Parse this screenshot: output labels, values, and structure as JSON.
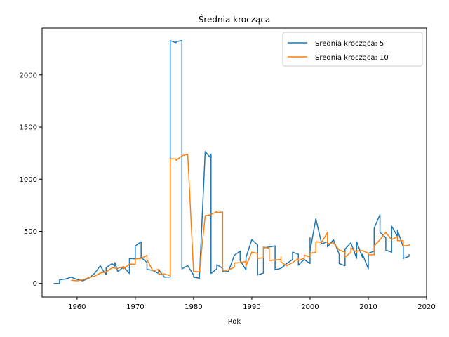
{
  "chart_data": {
    "type": "line",
    "title": "Średnia krocząca",
    "xlabel": "Rok",
    "ylabel": "",
    "xlim": [
      1954,
      2020
    ],
    "ylim": [
      -130,
      2450
    ],
    "x_ticks": [
      1960,
      1970,
      1980,
      1990,
      2000,
      2010,
      2020
    ],
    "y_ticks": [
      0,
      500,
      1000,
      1500,
      2000
    ],
    "grid": false,
    "legend_position": "top-right",
    "series": [
      {
        "name": "Srednia krocząca: 5",
        "color": "#1f77b4",
        "points": [
          [
            1956,
            0
          ],
          [
            1957,
            0
          ],
          [
            1957,
            35
          ],
          [
            1958,
            42
          ],
          [
            1959,
            60
          ],
          [
            1960,
            38
          ],
          [
            1961,
            25
          ],
          [
            1962,
            50
          ],
          [
            1963,
            95
          ],
          [
            1964,
            170
          ],
          [
            1964.5,
            120
          ],
          [
            1965,
            85
          ],
          [
            1965,
            150
          ],
          [
            1966,
            190
          ],
          [
            1966.5,
            165
          ],
          [
            1966.5,
            200
          ],
          [
            1967,
            115
          ],
          [
            1967.5,
            135
          ],
          [
            1968,
            160
          ],
          [
            1969,
            95
          ],
          [
            1969,
            240
          ],
          [
            1970,
            235
          ],
          [
            1970,
            360
          ],
          [
            1971,
            400
          ],
          [
            1971,
            250
          ],
          [
            1972,
            200
          ],
          [
            1972,
            135
          ],
          [
            1973,
            125
          ],
          [
            1974,
            95
          ],
          [
            1974,
            130
          ],
          [
            1975,
            60
          ],
          [
            1976,
            60
          ],
          [
            1976,
            2330
          ],
          [
            1977,
            2310
          ],
          [
            1977,
            2320
          ],
          [
            1978,
            2330
          ],
          [
            1978,
            140
          ],
          [
            1979,
            170
          ],
          [
            1980,
            80
          ],
          [
            1980,
            60
          ],
          [
            1981,
            50
          ],
          [
            1982,
            1265
          ],
          [
            1983,
            1200
          ],
          [
            1983,
            1240
          ],
          [
            1983,
            95
          ],
          [
            1984,
            140
          ],
          [
            1984,
            180
          ],
          [
            1985,
            145
          ],
          [
            1985,
            110
          ],
          [
            1986,
            115
          ],
          [
            1987,
            270
          ],
          [
            1988,
            310
          ],
          [
            1988,
            220
          ],
          [
            1989,
            130
          ],
          [
            1989,
            250
          ],
          [
            1990,
            420
          ],
          [
            1991,
            370
          ],
          [
            1991,
            80
          ],
          [
            1992,
            100
          ],
          [
            1992,
            340
          ],
          [
            1993,
            350
          ],
          [
            1994,
            360
          ],
          [
            1994,
            130
          ],
          [
            1995,
            145
          ],
          [
            1996,
            190
          ],
          [
            1997,
            230
          ],
          [
            1997,
            300
          ],
          [
            1998,
            280
          ],
          [
            1998,
            175
          ],
          [
            1999,
            230
          ],
          [
            2000,
            190
          ],
          [
            2000,
            440
          ],
          [
            2000,
            310
          ],
          [
            2001,
            620
          ],
          [
            2002,
            380
          ],
          [
            2003,
            400
          ],
          [
            2003,
            350
          ],
          [
            2004,
            420
          ],
          [
            2005,
            280
          ],
          [
            2005,
            190
          ],
          [
            2006,
            170
          ],
          [
            2006,
            330
          ],
          [
            2007,
            390
          ],
          [
            2008,
            240
          ],
          [
            2008,
            400
          ],
          [
            2009,
            250
          ],
          [
            2009,
            280
          ],
          [
            2010,
            140
          ],
          [
            2010,
            290
          ],
          [
            2011,
            310
          ],
          [
            2011,
            530
          ],
          [
            2012,
            660
          ],
          [
            2012,
            490
          ],
          [
            2013,
            440
          ],
          [
            2013,
            320
          ],
          [
            2014,
            300
          ],
          [
            2014,
            550
          ],
          [
            2015,
            450
          ],
          [
            2015,
            510
          ],
          [
            2016,
            350
          ],
          [
            2016,
            240
          ],
          [
            2017,
            260
          ],
          [
            2017,
            280
          ]
        ]
      },
      {
        "name": "Srednia krocząca: 10",
        "color": "#ff7f0e",
        "points": [
          [
            1959,
            30
          ],
          [
            1960,
            25
          ],
          [
            1961,
            35
          ],
          [
            1962,
            55
          ],
          [
            1963,
            70
          ],
          [
            1964,
            100
          ],
          [
            1965,
            110
          ],
          [
            1966,
            150
          ],
          [
            1967,
            145
          ],
          [
            1968,
            160
          ],
          [
            1968,
            140
          ],
          [
            1969,
            185
          ],
          [
            1970,
            185
          ],
          [
            1970,
            235
          ],
          [
            1971,
            240
          ],
          [
            1972,
            270
          ],
          [
            1972,
            230
          ],
          [
            1973,
            120
          ],
          [
            1974,
            135
          ],
          [
            1974,
            90
          ],
          [
            1975,
            90
          ],
          [
            1976,
            75
          ],
          [
            1976,
            1195
          ],
          [
            1977,
            1195
          ],
          [
            1977,
            1180
          ],
          [
            1978,
            1225
          ],
          [
            1979,
            1240
          ],
          [
            1980,
            115
          ],
          [
            1981,
            110
          ],
          [
            1982,
            650
          ],
          [
            1983,
            660
          ],
          [
            1984,
            690
          ],
          [
            1984,
            680
          ],
          [
            1985,
            685
          ],
          [
            1985,
            120
          ],
          [
            1986,
            130
          ],
          [
            1987,
            155
          ],
          [
            1987,
            195
          ],
          [
            1988,
            200
          ],
          [
            1989,
            210
          ],
          [
            1989,
            165
          ],
          [
            1990,
            300
          ],
          [
            1991,
            290
          ],
          [
            1991,
            240
          ],
          [
            1992,
            245
          ],
          [
            1992,
            350
          ],
          [
            1993,
            335
          ],
          [
            1993,
            220
          ],
          [
            1994,
            225
          ],
          [
            1995,
            230
          ],
          [
            1995,
            255
          ],
          [
            1995,
            205
          ],
          [
            1996,
            170
          ],
          [
            1997,
            200
          ],
          [
            1998,
            240
          ],
          [
            1998,
            220
          ],
          [
            1999,
            240
          ],
          [
            1999,
            270
          ],
          [
            2000,
            255
          ],
          [
            2000,
            290
          ],
          [
            2001,
            300
          ],
          [
            2001,
            400
          ],
          [
            2002,
            395
          ],
          [
            2003,
            490
          ],
          [
            2003,
            380
          ],
          [
            2004,
            390
          ],
          [
            2005,
            320
          ],
          [
            2006,
            300
          ],
          [
            2006,
            250
          ],
          [
            2007,
            300
          ],
          [
            2007,
            340
          ],
          [
            2008,
            300
          ],
          [
            2008,
            310
          ],
          [
            2009,
            315
          ],
          [
            2010,
            290
          ],
          [
            2010,
            275
          ],
          [
            2011,
            275
          ],
          [
            2011,
            360
          ],
          [
            2012,
            420
          ],
          [
            2013,
            490
          ],
          [
            2014,
            420
          ],
          [
            2015,
            450
          ],
          [
            2015,
            410
          ],
          [
            2016,
            410
          ],
          [
            2016,
            360
          ],
          [
            2017,
            365
          ],
          [
            2017,
            380
          ]
        ]
      }
    ]
  }
}
